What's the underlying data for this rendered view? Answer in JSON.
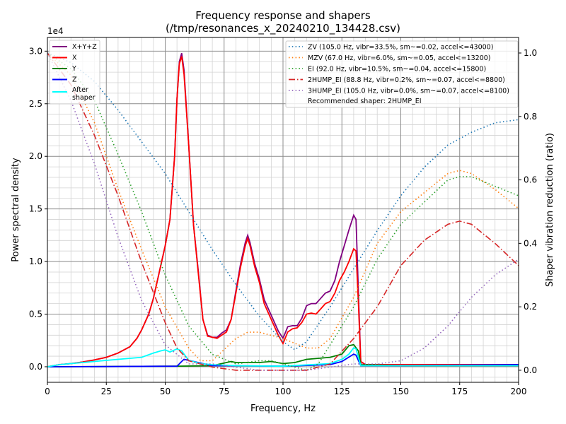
{
  "chart_data": {
    "type": "line",
    "title": "Frequency response and shapers",
    "subtitle": "(/tmp/resonances_x_20240210_134428.csv)",
    "xlabel": "Frequency, Hz",
    "ylabel": "Power spectral density",
    "ylabel_right": "Shaper vibration reduction (ratio)",
    "y_offset_label": "1e4",
    "xlim": [
      0,
      200
    ],
    "ylim": [
      -0.148,
      3.13
    ],
    "ylim_right": [
      -0.038,
      1.049
    ],
    "grid": true,
    "xticks": [
      "0",
      "25",
      "50",
      "75",
      "100",
      "125",
      "150",
      "175",
      "200"
    ],
    "yticks": [
      "0.0",
      "0.5",
      "1.0",
      "1.5",
      "2.0",
      "2.5",
      "3.0"
    ],
    "yticks_right": [
      "0.0",
      "0.2",
      "0.4",
      "0.6",
      "0.8",
      "1.0"
    ],
    "legend_left_placement": "top-left",
    "legend_right_placement": "top-right",
    "series": [
      {
        "name": "X+Y+Z",
        "color": "#800080",
        "style": "solid",
        "axis": "left",
        "x": [
          0,
          5,
          10,
          15,
          20,
          25,
          30,
          35,
          38,
          40,
          43,
          45,
          47,
          50,
          52,
          54,
          55,
          56,
          57,
          58,
          60,
          62,
          64,
          66,
          68,
          70,
          72,
          74,
          76,
          78,
          80,
          82,
          84,
          85,
          86,
          88,
          90,
          92,
          94,
          96,
          98,
          100,
          102,
          104,
          106,
          108,
          110,
          112,
          114,
          116,
          118,
          120,
          122,
          124,
          126,
          128,
          130,
          131,
          132,
          133,
          135,
          150,
          175,
          200
        ],
        "y": [
          0,
          0.02,
          0.03,
          0.045,
          0.065,
          0.09,
          0.13,
          0.19,
          0.27,
          0.35,
          0.5,
          0.65,
          0.85,
          1.15,
          1.4,
          2.0,
          2.55,
          2.9,
          2.98,
          2.82,
          2.1,
          1.35,
          0.92,
          0.45,
          0.3,
          0.28,
          0.28,
          0.32,
          0.35,
          0.45,
          0.72,
          0.98,
          1.18,
          1.25,
          1.18,
          0.98,
          0.83,
          0.64,
          0.54,
          0.44,
          0.34,
          0.27,
          0.38,
          0.39,
          0.39,
          0.46,
          0.58,
          0.6,
          0.6,
          0.65,
          0.7,
          0.72,
          0.82,
          1.0,
          1.15,
          1.3,
          1.44,
          1.4,
          0.7,
          0.05,
          0.02,
          0.02,
          0.02,
          0.02
        ]
      },
      {
        "name": "X",
        "color": "#ff0000",
        "style": "solid",
        "axis": "left",
        "x": [
          0,
          5,
          10,
          15,
          20,
          25,
          30,
          35,
          38,
          40,
          43,
          45,
          47,
          50,
          52,
          54,
          55,
          56,
          57,
          58,
          60,
          62,
          64,
          66,
          68,
          70,
          72,
          74,
          76,
          78,
          80,
          82,
          84,
          85,
          86,
          88,
          90,
          92,
          94,
          96,
          98,
          100,
          102,
          104,
          106,
          108,
          110,
          112,
          114,
          116,
          118,
          120,
          122,
          124,
          126,
          128,
          130,
          131,
          132,
          133,
          135,
          150,
          175,
          200
        ],
        "y": [
          0,
          0.02,
          0.03,
          0.045,
          0.065,
          0.09,
          0.13,
          0.19,
          0.27,
          0.35,
          0.5,
          0.65,
          0.85,
          1.15,
          1.4,
          2.0,
          2.55,
          2.88,
          2.95,
          2.78,
          2.1,
          1.35,
          0.9,
          0.45,
          0.29,
          0.28,
          0.27,
          0.3,
          0.33,
          0.45,
          0.7,
          0.95,
          1.15,
          1.22,
          1.15,
          0.95,
          0.8,
          0.6,
          0.5,
          0.4,
          0.3,
          0.22,
          0.33,
          0.36,
          0.37,
          0.42,
          0.5,
          0.51,
          0.5,
          0.55,
          0.6,
          0.62,
          0.7,
          0.82,
          0.9,
          1.0,
          1.12,
          1.1,
          0.6,
          0.05,
          0.02,
          0.02,
          0.02,
          0.02
        ]
      },
      {
        "name": "Y",
        "color": "#008000",
        "style": "solid",
        "axis": "left",
        "x": [
          0,
          5,
          55,
          70,
          78,
          80,
          90,
          95,
          100,
          105,
          110,
          120,
          125,
          128,
          130,
          132,
          133,
          150,
          200
        ],
        "y": [
          0,
          0,
          0.005,
          0.01,
          0.05,
          0.04,
          0.04,
          0.05,
          0.03,
          0.04,
          0.07,
          0.09,
          0.12,
          0.2,
          0.21,
          0.15,
          0.02,
          0.01,
          0.01
        ]
      },
      {
        "name": "Z",
        "color": "#0000ff",
        "style": "solid",
        "axis": "left",
        "x": [
          0,
          5,
          55,
          57,
          58,
          60,
          70,
          80,
          100,
          120,
          125,
          130,
          131,
          133,
          150,
          200
        ],
        "y": [
          0,
          0,
          0.005,
          0.05,
          0.07,
          0.06,
          0.01,
          0.01,
          0.005,
          0.02,
          0.05,
          0.12,
          0.11,
          0.01,
          0.01,
          0.02
        ]
      },
      {
        "name": "After\nshaper",
        "color": "#00ffff",
        "style": "solid",
        "axis": "left",
        "x": [
          0,
          5,
          20,
          30,
          40,
          45,
          48,
          50,
          52,
          55,
          57,
          60,
          65,
          70,
          80,
          100,
          120,
          125,
          128,
          130,
          131,
          133,
          150,
          200
        ],
        "y": [
          0,
          0.02,
          0.05,
          0.07,
          0.09,
          0.13,
          0.15,
          0.16,
          0.14,
          0.17,
          0.15,
          0.06,
          0.03,
          0.02,
          0.01,
          0.005,
          0.03,
          0.07,
          0.12,
          0.18,
          0.17,
          0.01,
          0.01,
          0.01
        ]
      },
      {
        "name": "ZV (105.0 Hz, vibr=33.5%, sm~=0.02, accel<=43000)",
        "color": "#1f77b4",
        "style": "dotted",
        "axis": "right",
        "x": [
          0,
          10,
          20,
          30,
          40,
          50,
          60,
          70,
          80,
          90,
          100,
          105,
          110,
          120,
          130,
          140,
          150,
          160,
          170,
          180,
          190,
          200
        ],
        "y": [
          1.0,
          0.97,
          0.91,
          0.82,
          0.72,
          0.62,
          0.5,
          0.38,
          0.27,
          0.17,
          0.09,
          0.065,
          0.09,
          0.2,
          0.32,
          0.44,
          0.55,
          0.64,
          0.71,
          0.75,
          0.78,
          0.79
        ]
      },
      {
        "name": "MZV (67.0 Hz, vibr=6.0%, sm~=0.05, accel<=13200)",
        "color": "#ff7f0e",
        "style": "dotted",
        "axis": "right",
        "x": [
          0,
          10,
          20,
          30,
          40,
          50,
          60,
          65,
          70,
          80,
          85,
          90,
          100,
          110,
          115,
          120,
          130,
          140,
          150,
          160,
          170,
          175,
          180,
          190,
          200
        ],
        "y": [
          1.0,
          0.93,
          0.78,
          0.57,
          0.38,
          0.2,
          0.07,
          0.03,
          0.03,
          0.1,
          0.12,
          0.12,
          0.1,
          0.07,
          0.07,
          0.1,
          0.23,
          0.4,
          0.5,
          0.56,
          0.62,
          0.63,
          0.62,
          0.57,
          0.51
        ]
      },
      {
        "name": "EI (92.0 Hz, vibr=10.5%, sm~=0.04, accel<=15800)",
        "color": "#2ca02c",
        "style": "dotted",
        "axis": "right",
        "x": [
          0,
          10,
          20,
          30,
          40,
          50,
          60,
          70,
          80,
          90,
          95,
          100,
          110,
          115,
          120,
          130,
          140,
          150,
          160,
          170,
          175,
          180,
          190,
          200
        ],
        "y": [
          1.0,
          0.95,
          0.85,
          0.68,
          0.5,
          0.3,
          0.14,
          0.05,
          0.02,
          0.03,
          0.03,
          0.02,
          0.0,
          0.02,
          0.08,
          0.2,
          0.35,
          0.46,
          0.53,
          0.6,
          0.61,
          0.61,
          0.58,
          0.55
        ]
      },
      {
        "name": "2HUMP_EI (88.8 Hz, vibr=0.2%, sm~=0.07, accel<=8800)",
        "color": "#d62728",
        "style": "dashdot",
        "axis": "right",
        "x": [
          0,
          10,
          20,
          30,
          40,
          50,
          55,
          60,
          70,
          80,
          90,
          100,
          110,
          120,
          130,
          140,
          150,
          160,
          170,
          175,
          180,
          190,
          200
        ],
        "y": [
          1.0,
          0.9,
          0.74,
          0.55,
          0.34,
          0.15,
          0.07,
          0.03,
          0.01,
          0.0,
          0.0,
          0.0,
          0.0,
          0.02,
          0.1,
          0.2,
          0.33,
          0.41,
          0.46,
          0.47,
          0.46,
          0.4,
          0.33
        ]
      },
      {
        "name": "3HUMP_EI (105.0 Hz, vibr=0.0%, sm~=0.07, accel<=8100)",
        "color": "#9467bd",
        "style": "dotted",
        "axis": "right",
        "x": [
          0,
          10,
          20,
          30,
          40,
          50,
          60,
          70,
          80,
          90,
          100,
          110,
          130,
          140,
          150,
          160,
          170,
          180,
          190,
          200
        ],
        "y": [
          1.0,
          0.85,
          0.65,
          0.42,
          0.22,
          0.08,
          0.02,
          0.02,
          0.01,
          0.0,
          0.0,
          0.0,
          0.02,
          0.02,
          0.03,
          0.07,
          0.14,
          0.23,
          0.3,
          0.35
        ]
      }
    ],
    "annotation": "Recommended shaper: 2HUMP_EI"
  }
}
